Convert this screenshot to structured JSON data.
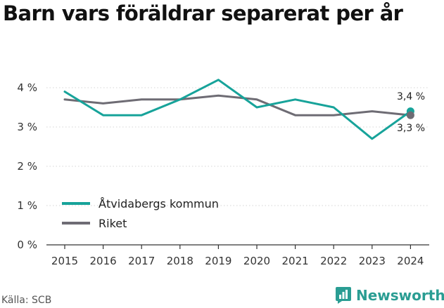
{
  "title": "Barn vars föräldrar separerat per år",
  "source": "Källa: SCB",
  "brand": {
    "name": "Newsworthy",
    "color": "#2a9d93"
  },
  "chart_data": {
    "type": "line",
    "categories": [
      "2015",
      "2016",
      "2017",
      "2018",
      "2019",
      "2020",
      "2021",
      "2022",
      "2023",
      "2024"
    ],
    "ylim": [
      0,
      4.5
    ],
    "yticks": [
      {
        "value": 0,
        "label": "0 %"
      },
      {
        "value": 1,
        "label": "1 %"
      },
      {
        "value": 2,
        "label": "2 %"
      },
      {
        "value": 3,
        "label": "3 %"
      },
      {
        "value": 4,
        "label": "4 %"
      }
    ],
    "grid": true,
    "legend_position": "left",
    "series": [
      {
        "name": "Åtvidabergs kommun",
        "color": "#17a39a",
        "values": [
          3.9,
          3.3,
          3.3,
          3.7,
          4.2,
          3.5,
          3.7,
          3.5,
          2.7,
          3.4
        ],
        "end_label": "3,4 %"
      },
      {
        "name": "Riket",
        "color": "#6e6c74",
        "values": [
          3.7,
          3.6,
          3.7,
          3.7,
          3.8,
          3.7,
          3.3,
          3.3,
          3.4,
          3.3
        ],
        "end_label": "3,3 %"
      }
    ]
  }
}
